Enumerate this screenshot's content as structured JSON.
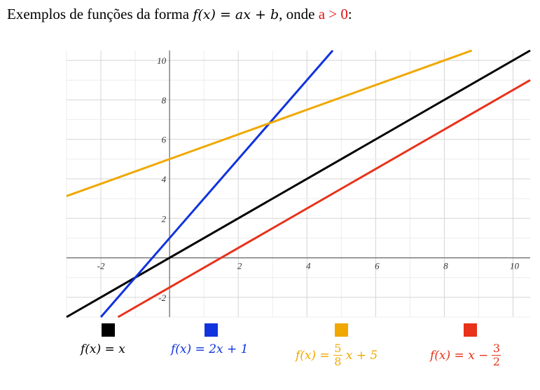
{
  "heading": {
    "prefix": "Exemplos de funções da forma ",
    "formula": "f(x) = ax + b",
    "middle": ", onde ",
    "condition": "a > 0",
    "suffix": ":",
    "condition_color": "#e11111"
  },
  "legend": [
    {
      "color": "#000000",
      "pre": "f(x) = x",
      "num": "",
      "den": "",
      "post": ""
    },
    {
      "color": "#1133dd",
      "pre": "f(x) = 2x + 1",
      "num": "",
      "den": "",
      "post": ""
    },
    {
      "color": "#f0a800",
      "pre": "f(x) =",
      "num": "5",
      "den": "8",
      "post": "x + 5"
    },
    {
      "color": "#e8321a",
      "pre": "f(x) = x −",
      "num": "3",
      "den": "2",
      "post": ""
    }
  ],
  "chart_data": {
    "type": "line",
    "xlim": [
      -3,
      10.5
    ],
    "ylim": [
      -3,
      10.5
    ],
    "grid": true,
    "x_ticks": [
      -2,
      2,
      4,
      6,
      8,
      10
    ],
    "y_ticks": [
      -2,
      2,
      4,
      6,
      8,
      10
    ],
    "series": [
      {
        "expression": "f(x) = x",
        "slope": 1,
        "intercept": 0,
        "color": "#000000"
      },
      {
        "expression": "f(x) = 2x + 1",
        "slope": 2,
        "intercept": 1,
        "color": "#1133dd"
      },
      {
        "expression": "f(x) = 5/8 x + 5",
        "slope": 0.625,
        "intercept": 5,
        "color": "#f0a800"
      },
      {
        "expression": "f(x) = x − 3/2",
        "slope": 1,
        "intercept": -1.5,
        "color": "#e8321a"
      }
    ]
  }
}
